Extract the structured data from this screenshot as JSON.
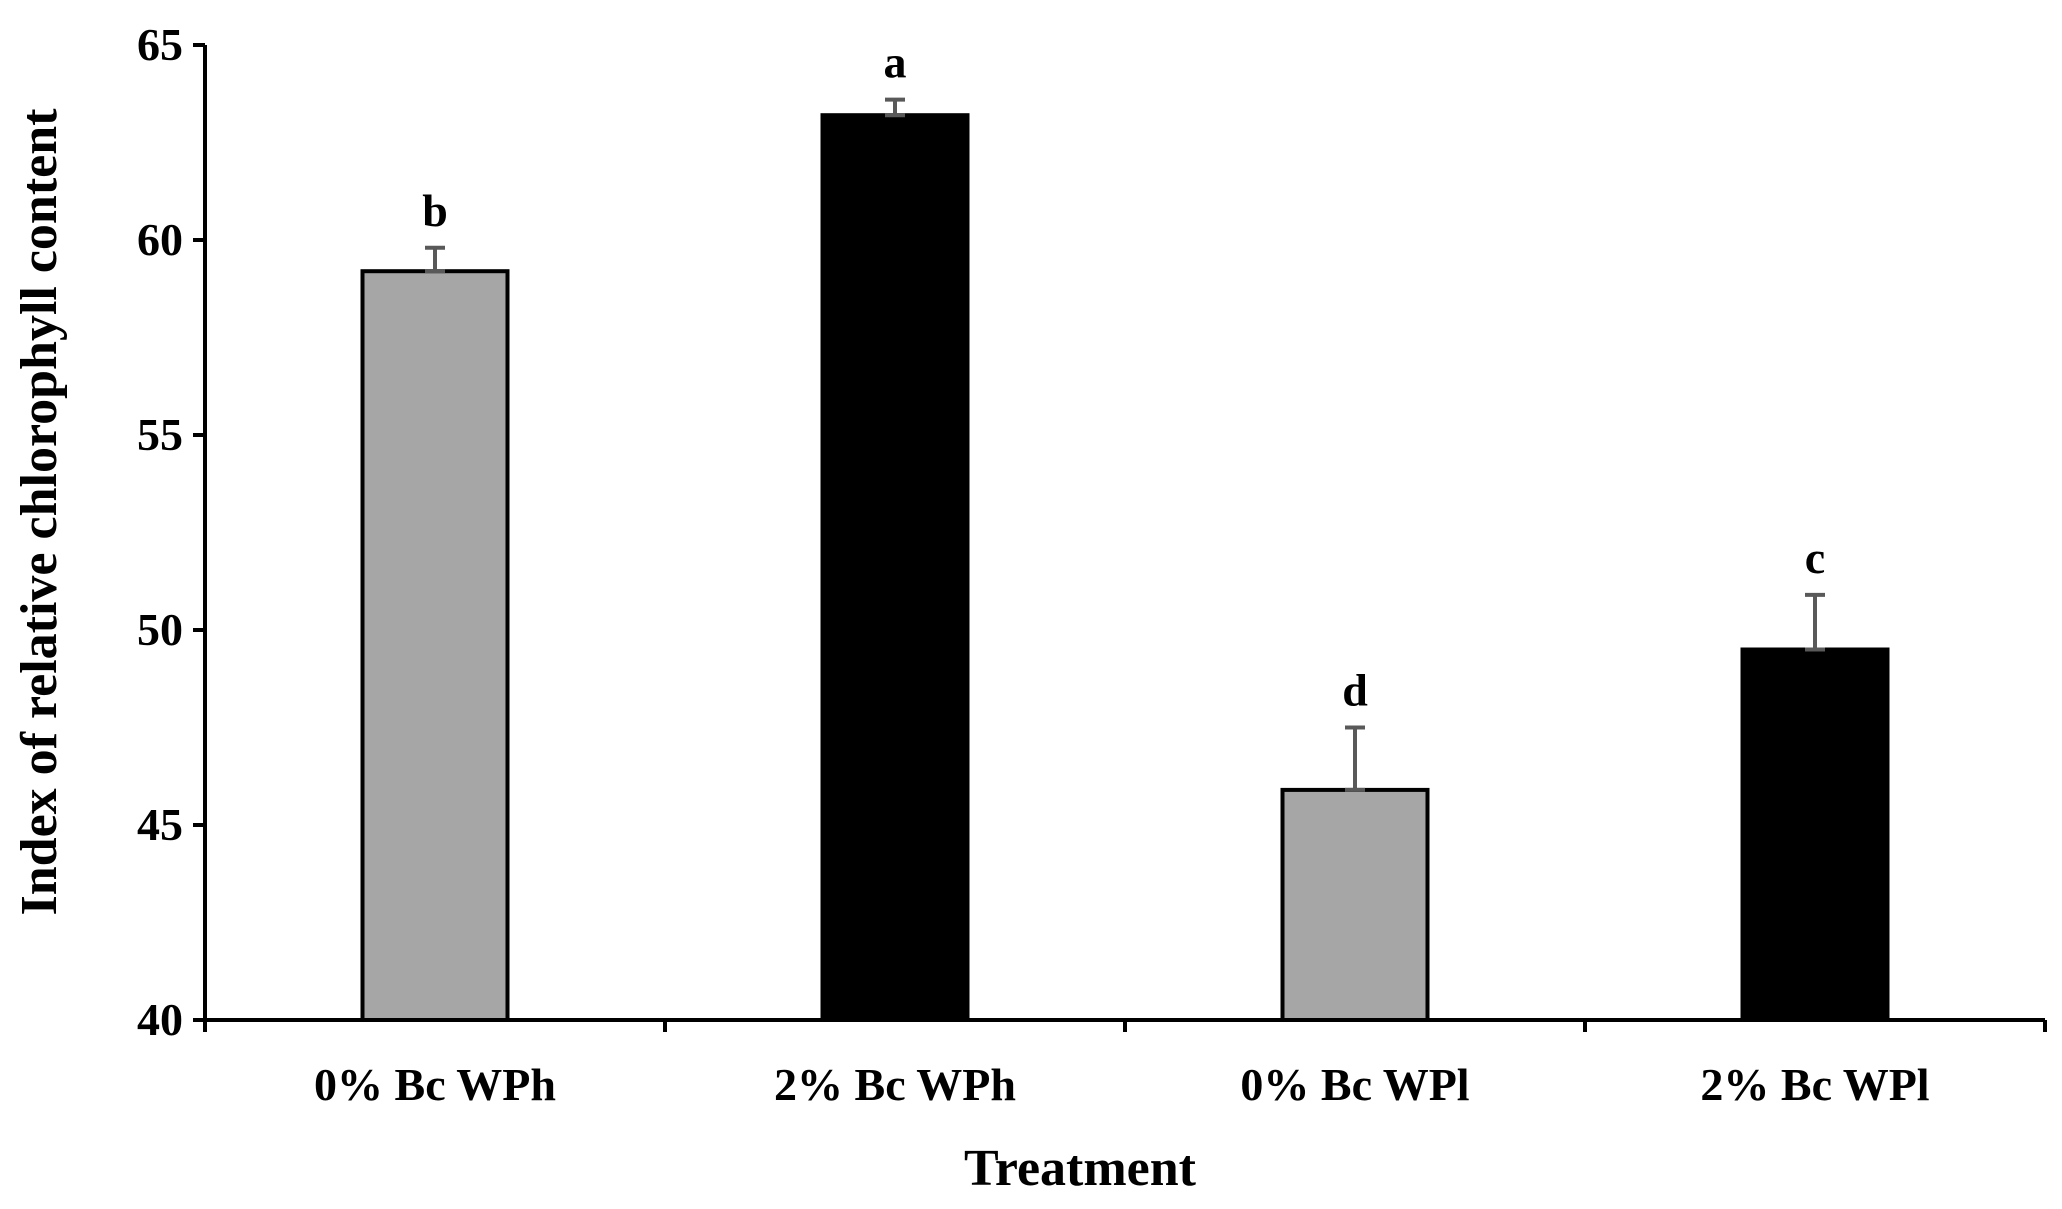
{
  "chart_data": {
    "type": "bar",
    "title": "",
    "xlabel": "Treatment",
    "ylabel": "Index of relative chlorophyll content",
    "ylim": [
      40,
      65
    ],
    "yticks": [
      40,
      45,
      50,
      55,
      60,
      65
    ],
    "grid": false,
    "categories": [
      "0% Bc WPh",
      "2% Bc WPh",
      "0% Bc WPl",
      "2% Bc WPl"
    ],
    "values": [
      59.2,
      63.2,
      45.9,
      49.5
    ],
    "errors": [
      0.6,
      0.4,
      1.6,
      1.4
    ],
    "significance": [
      "b",
      "a",
      "d",
      "c"
    ],
    "bar_colors": [
      "#a6a6a6",
      "#000000",
      "#a6a6a6",
      "#000000"
    ],
    "error_bar_color": "#595959"
  }
}
